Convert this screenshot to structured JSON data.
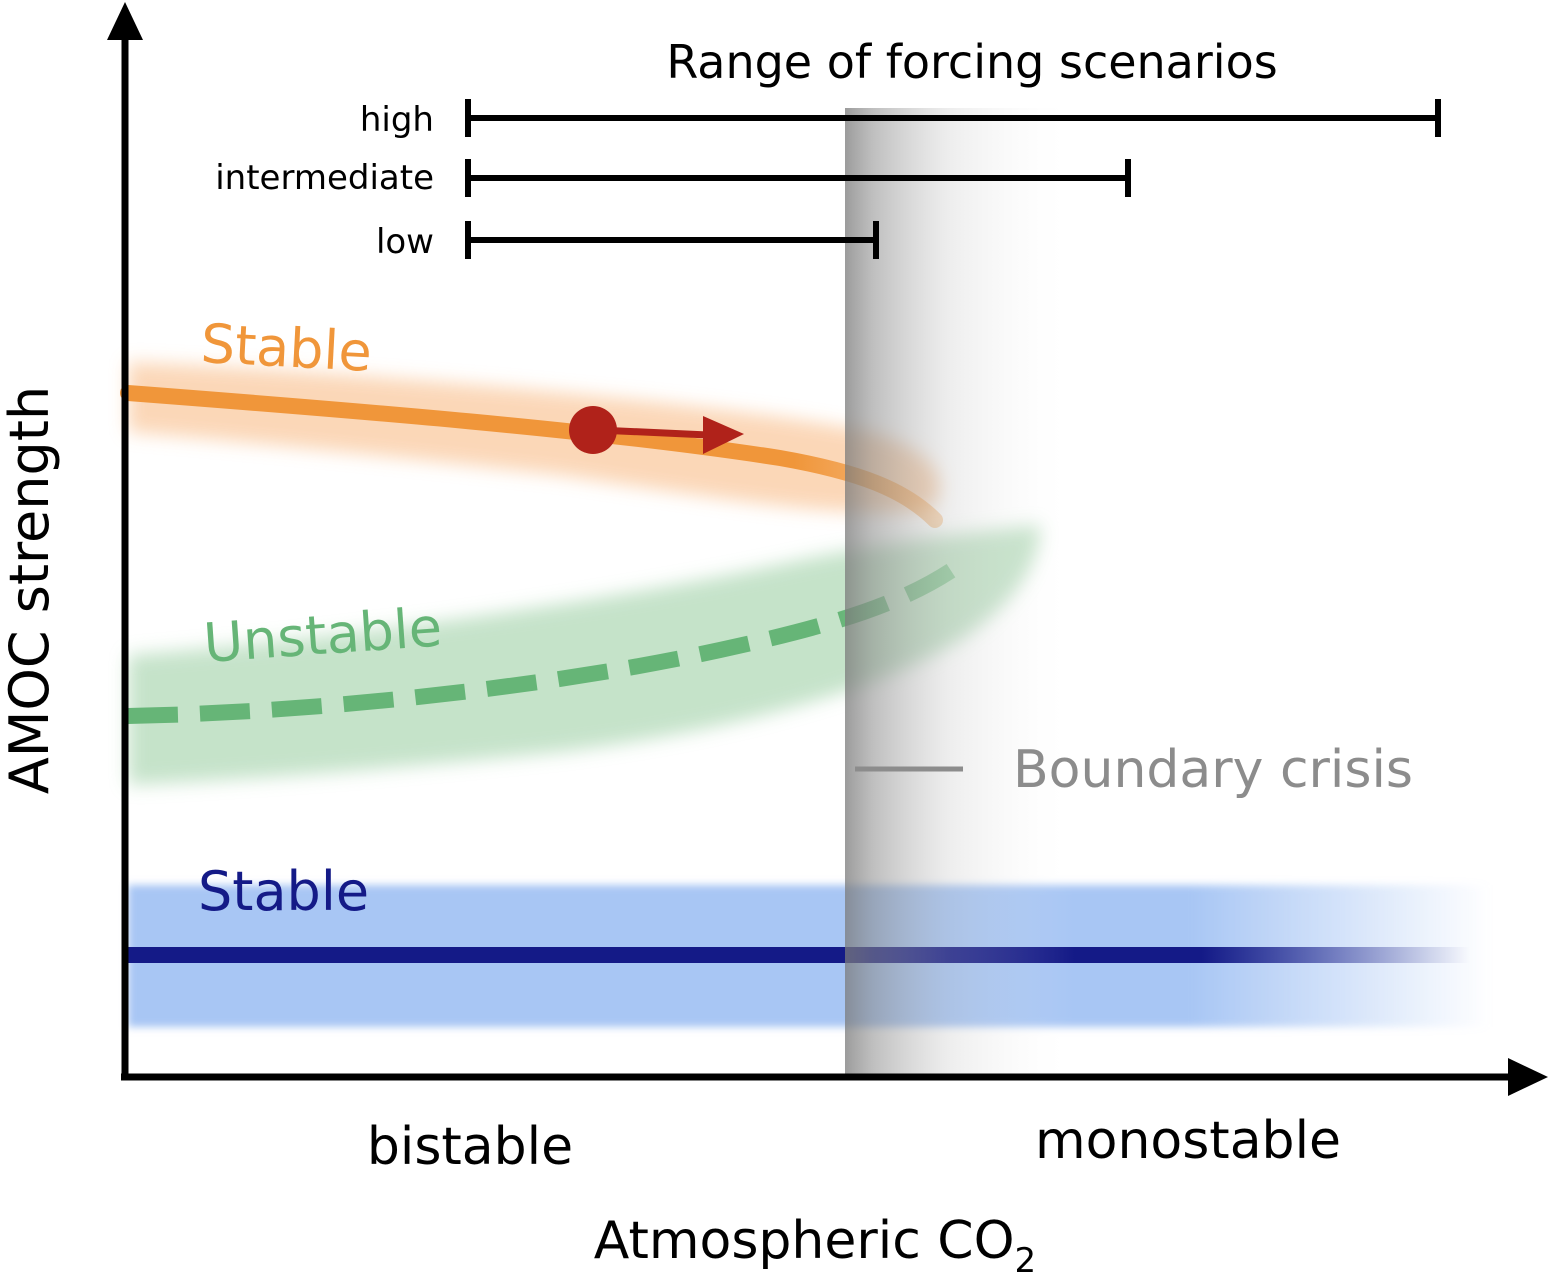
{
  "diagram": {
    "title": "Range of forcing scenarios",
    "y_axis_label": "AMOC strength",
    "x_axis_label": "Atmospheric CO",
    "x_axis_label_subscript": "2",
    "x_regions": {
      "left": "bistable",
      "right": "monostable"
    },
    "scenarios": [
      {
        "label": "high"
      },
      {
        "label": "intermediate"
      },
      {
        "label": "low"
      }
    ],
    "branches": {
      "upper_stable": {
        "label": "Stable",
        "color": "#f0963a",
        "band_color": "#fbd3b0"
      },
      "unstable": {
        "label": "Unstable",
        "color": "#66b577",
        "band_color": "#bfe0c4"
      },
      "lower_stable": {
        "label": "Stable",
        "color": "#141a87",
        "band_color": "#a8c6f4"
      }
    },
    "state_marker_color": "#b0221a",
    "boundary": {
      "label": "Boundary crisis",
      "color": "#8c8c8c"
    }
  }
}
